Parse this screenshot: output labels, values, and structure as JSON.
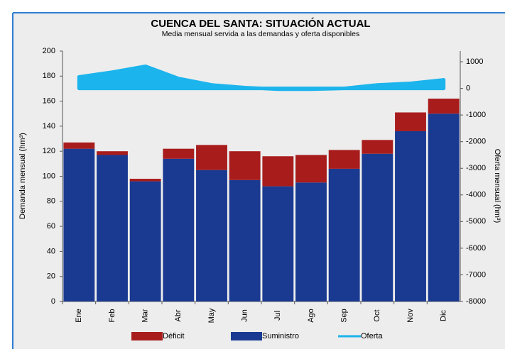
{
  "chart_data": {
    "type": "bar",
    "stacked": true,
    "title": "CUENCA DEL SANTA: SITUACIÓN ACTUAL",
    "subtitle": "Media mensual servida a las demandas y oferta disponibles",
    "y_label": "Demanda mensual (hm³)",
    "y2_label": "Oferta mensual (hm³)",
    "categories": [
      "Ene",
      "Feb",
      "Mar",
      "Abr",
      "May",
      "Jun",
      "Jul",
      "Ago",
      "Sep",
      "Oct",
      "Nov",
      "Dic"
    ],
    "series": [
      {
        "name": "Déficit",
        "color": "#a81c1c",
        "type": "bar",
        "values": [
          5,
          3,
          2,
          8,
          20,
          23,
          24,
          22,
          15,
          11,
          15,
          12
        ]
      },
      {
        "name": "Suministro",
        "color": "#1a3a91",
        "type": "bar",
        "values": [
          122,
          117,
          96,
          114,
          105,
          97,
          92,
          95,
          106,
          118,
          136,
          150
        ]
      },
      {
        "name": "Oferta",
        "color": "#1cb4ec",
        "type": "area",
        "axis": "y2",
        "values": [
          430,
          610,
          830,
          370,
          130,
          30,
          -30,
          -30,
          0,
          130,
          190,
          320
        ]
      }
    ],
    "ylim": [
      0,
      200
    ],
    "yticks": [
      0,
      20,
      40,
      60,
      80,
      100,
      120,
      140,
      160,
      180,
      200
    ],
    "y2lim": [
      -8000,
      1400
    ],
    "y2ticks": [
      -8000,
      -7000,
      -6000,
      -5000,
      -4000,
      -3000,
      -2000,
      -1000,
      0,
      1000
    ]
  }
}
